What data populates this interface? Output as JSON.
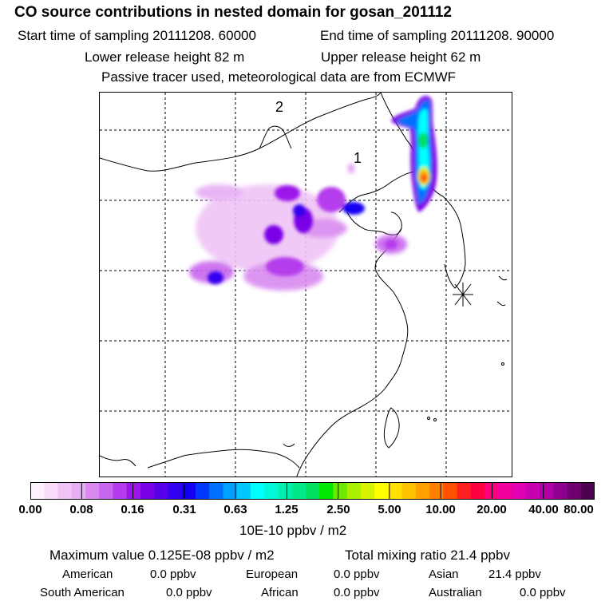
{
  "header": {
    "title": "CO  source contributions in nested domain for gosan_201112",
    "start_time": "Start time of sampling 20111208. 60000",
    "end_time": "End time of sampling 20111208. 90000",
    "lower_release": "Lower release height   82 m",
    "upper_release": "Upper release height   62 m",
    "tracer_note": "Passive tracer used, meteorological data are from ECMWF"
  },
  "map": {
    "label_1": "1",
    "label_2": "2",
    "station_marker": "asterisk-icon"
  },
  "colorbar": {
    "ticks": [
      "0.00",
      "0.08",
      "0.16",
      "0.31",
      "0.63",
      "1.25",
      "2.50",
      "5.00",
      "10.00",
      "20.00",
      "40.00",
      "80.00"
    ],
    "unit": "10E-10 ppbv / m2",
    "colors": [
      "#fff2ff",
      "#f9ddfb",
      "#f0c4f6",
      "#e6aef3",
      "#d98af0",
      "#c966ee",
      "#b43cec",
      "#9b15ea",
      "#7a00e6",
      "#5600e8",
      "#3200ee",
      "#1200f2",
      "#0038ff",
      "#0070ff",
      "#00a0ff",
      "#00c8ff",
      "#00ffff",
      "#00f8d8",
      "#00f0b0",
      "#00e888",
      "#00e060",
      "#00e800",
      "#6ee800",
      "#a8f000",
      "#d6f400",
      "#ffff00",
      "#ffe000",
      "#ffc000",
      "#ffa000",
      "#ff8000",
      "#ff5000",
      "#ff2020",
      "#ff0040",
      "#ff0080",
      "#f000a0",
      "#e000b0",
      "#c800b0",
      "#b000a8",
      "#900090",
      "#700070",
      "#500050"
    ]
  },
  "stats": {
    "max_value": "Maximum value  0.125E-08 ppbv / m2",
    "total_mixing": "Total mixing ratio       21.4 ppbv",
    "american_label": "American",
    "american_value": "0.0 ppbv",
    "european_label": "European",
    "european_value": "0.0 ppbv",
    "asian_label": "Asian",
    "asian_value": "21.4 ppbv",
    "south_american_label": "South American",
    "south_american_value": "0.0 ppbv",
    "african_label": "African",
    "african_value": "0.0 ppbv",
    "australian_label": "Australian",
    "australian_value": "0.0 ppbv"
  }
}
